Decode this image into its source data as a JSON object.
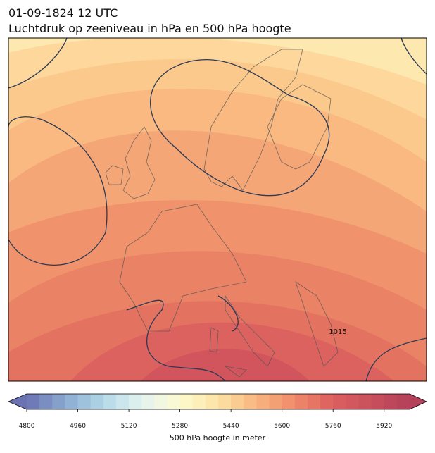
{
  "header": {
    "title": "01-09-1824 12 UTC",
    "subtitle": "Luchtdruk op zeeniveau in hPa en 500 hPa hoogte"
  },
  "map": {
    "isobar_labels": [
      "1015"
    ]
  },
  "colorbar": {
    "label": "500 hPa hoogte in meter",
    "range": [
      4800,
      6000
    ],
    "step": 40,
    "ticks": [
      4800,
      4960,
      5120,
      5280,
      5440,
      5600,
      5760,
      5920
    ],
    "extend": "both",
    "colors": [
      "#6a72b2",
      "#8aaad0",
      "#b2d8e8",
      "#e4f3f0",
      "#fdfbcf",
      "#fde2a4",
      "#f9b57f",
      "#ef8a6a",
      "#dc5f5e",
      "#c8505c",
      "#b4405a"
    ]
  }
}
